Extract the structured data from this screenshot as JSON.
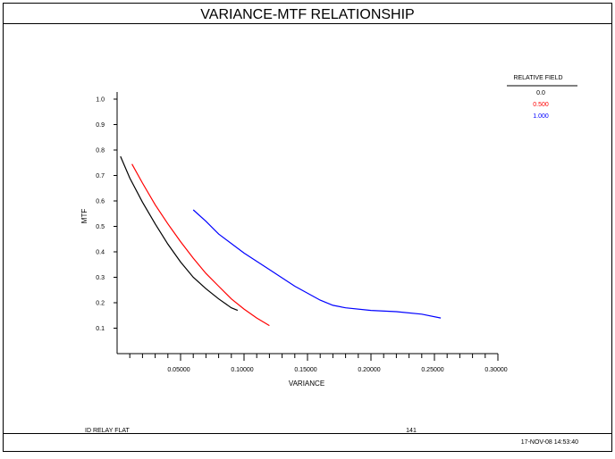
{
  "chart_data": {
    "type": "line",
    "title": "VARIANCE-MTF RELATIONSHIP",
    "xlabel": "VARIANCE",
    "ylabel": "MTF",
    "xlim": [
      0,
      0.3
    ],
    "ylim": [
      0,
      1.0
    ],
    "x_ticks": [
      {
        "value": 0.05,
        "label": "0.05000"
      },
      {
        "value": 0.1,
        "label": "0.10000"
      },
      {
        "value": 0.15,
        "label": "0.15000"
      },
      {
        "value": 0.2,
        "label": "0.20000"
      },
      {
        "value": 0.25,
        "label": "0.25000"
      },
      {
        "value": 0.3,
        "label": "0.30000"
      }
    ],
    "y_ticks": [
      {
        "value": 0.1,
        "label": "0.1"
      },
      {
        "value": 0.2,
        "label": "0.2"
      },
      {
        "value": 0.3,
        "label": "0.3"
      },
      {
        "value": 0.4,
        "label": "0.4"
      },
      {
        "value": 0.5,
        "label": "0.5"
      },
      {
        "value": 0.6,
        "label": "0.6"
      },
      {
        "value": 0.7,
        "label": "0.7"
      },
      {
        "value": 0.8,
        "label": "0.8"
      },
      {
        "value": 0.9,
        "label": "0.9"
      },
      {
        "value": 1.0,
        "label": "1.0"
      }
    ],
    "grid": false,
    "legend": {
      "title": "RELATIVE FIELD",
      "placement": "top-right"
    },
    "series": [
      {
        "name": "0.0",
        "color": "#000000",
        "x": [
          0.0027,
          0.01,
          0.02,
          0.03,
          0.04,
          0.05,
          0.06,
          0.07,
          0.08,
          0.09,
          0.095
        ],
        "y": [
          0.775,
          0.69,
          0.595,
          0.51,
          0.43,
          0.36,
          0.3,
          0.255,
          0.215,
          0.18,
          0.17
        ]
      },
      {
        "name": "0.500",
        "color": "#ff0000",
        "x": [
          0.0117,
          0.02,
          0.03,
          0.04,
          0.05,
          0.06,
          0.07,
          0.08,
          0.09,
          0.1,
          0.11,
          0.12
        ],
        "y": [
          0.745,
          0.67,
          0.585,
          0.51,
          0.44,
          0.375,
          0.315,
          0.265,
          0.215,
          0.175,
          0.14,
          0.11
        ]
      },
      {
        "name": "1.000",
        "color": "#0000ff",
        "x": [
          0.06,
          0.07,
          0.08,
          0.1,
          0.12,
          0.14,
          0.16,
          0.17,
          0.18,
          0.2,
          0.22,
          0.24,
          0.255
        ],
        "y": [
          0.565,
          0.52,
          0.47,
          0.395,
          0.33,
          0.265,
          0.21,
          0.19,
          0.18,
          0.17,
          0.165,
          0.155,
          0.14
        ]
      }
    ]
  },
  "footer": {
    "left_text": "ID RELAY FLAT",
    "center_text": "141",
    "timestamp": "17-NOV-08  14:53:40"
  }
}
